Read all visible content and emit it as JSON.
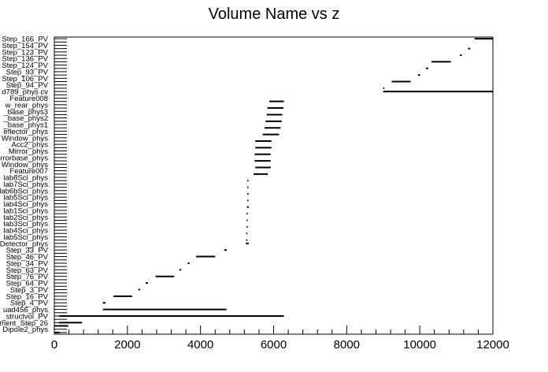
{
  "chart_data": {
    "type": "bar",
    "title": "Volume Name vs z",
    "xlabel": "",
    "ylabel": "",
    "xlim": [
      0,
      12000
    ],
    "x_ticks": [
      0,
      2000,
      4000,
      6000,
      8000,
      10000,
      12000
    ],
    "grid": false,
    "legend": "none",
    "categories": [
      "Step_166_PV",
      "",
      "Step_154_PV",
      "",
      "Step_123_PV",
      "",
      "Step_136_PV",
      "",
      "Step_124_PV",
      "",
      "Step_93_PV",
      "",
      "Step_106_PV",
      "",
      "Step_94_PV",
      "",
      "d789_phys cv",
      "",
      "Feature008",
      "",
      "w_rear_phys",
      "",
      "_base_phys3",
      "",
      "_base_phys2",
      "",
      "_base_phys1",
      "",
      "eflector_phys",
      "",
      "Window_phys",
      "",
      "Acc2_phys",
      "",
      "Mirror_phys",
      "",
      "rrorbase_phys",
      "",
      "Window_phys",
      "",
      "Feature007",
      "",
      "lab8Sci_phys",
      "",
      "lab7Sci_phys",
      "",
      "lab6bSci_phys",
      "",
      "lab5Sci_phys",
      "",
      "lab4Sci_phys",
      "",
      "lab1Sci_phys",
      "",
      "lab2Sci_phys",
      "",
      "lab3Sci_phys",
      "",
      "lab4Sci_phys",
      "",
      "lab5Sci_phys",
      "",
      "Detector_phys",
      "",
      "Step_33_PV",
      "",
      "Step_46_PV",
      "",
      "Step_34_PV",
      "",
      "Step_63_PV",
      "",
      "Step_76_PV",
      "",
      "Step_64_PV",
      "",
      "Step_3_PV",
      "",
      "Step_16_PV",
      "",
      "Step_4_PV",
      "",
      "uad456_phys",
      "",
      "_structvol_PV",
      "",
      "ment_Step_26",
      "",
      "Dipole2_phys",
      ""
    ],
    "ranges": [
      [
        11500,
        12000
      ],
      [
        11320,
        11380
      ],
      [
        11100,
        11150
      ],
      [
        10320,
        10850
      ],
      [
        10170,
        10230
      ],
      [
        9950,
        10010
      ],
      [
        9230,
        9750
      ],
      [
        9000,
        9030
      ],
      [
        9000,
        12000
      ],
      [
        5880,
        6280
      ],
      [
        5830,
        6270
      ],
      [
        5810,
        6240
      ],
      [
        5780,
        6220
      ],
      [
        5750,
        6190
      ],
      [
        5700,
        6150
      ],
      [
        5500,
        5940
      ],
      [
        5500,
        5940
      ],
      [
        5480,
        5920
      ],
      [
        5480,
        5920
      ],
      [
        5500,
        5920
      ],
      [
        5450,
        5840
      ],
      [
        5280,
        5300
      ],
      [
        5280,
        5300
      ],
      [
        5280,
        5300
      ],
      [
        5280,
        5300
      ],
      [
        5270,
        5320
      ],
      [
        5260,
        5280
      ],
      [
        5260,
        5280
      ],
      [
        5260,
        5280
      ],
      [
        5250,
        5280
      ],
      [
        5250,
        5280
      ],
      [
        5240,
        5320
      ],
      [
        4650,
        4720
      ],
      [
        3880,
        4400
      ],
      [
        3650,
        3700
      ],
      [
        3420,
        3470
      ],
      [
        2770,
        3280
      ],
      [
        2500,
        2560
      ],
      [
        2300,
        2350
      ],
      [
        1620,
        2130
      ],
      [
        1330,
        1400
      ],
      [
        1330,
        4710
      ],
      [
        130,
        6280
      ],
      [
        130,
        760
      ],
      [
        0,
        380
      ],
      [
        0,
        150
      ]
    ],
    "range_rows": [
      0,
      3,
      5,
      7,
      9,
      11,
      13,
      15,
      16,
      19,
      21,
      23,
      25,
      27,
      29,
      31,
      33,
      35,
      37,
      39,
      41,
      43,
      45,
      47,
      49,
      51,
      53,
      55,
      57,
      59,
      61,
      62,
      64,
      66,
      68,
      70,
      72,
      74,
      76,
      78,
      80,
      82,
      84,
      86,
      87,
      89
    ],
    "colors": {
      "bar": "#000000",
      "axis": "#000000",
      "background": "#ffffff"
    }
  }
}
